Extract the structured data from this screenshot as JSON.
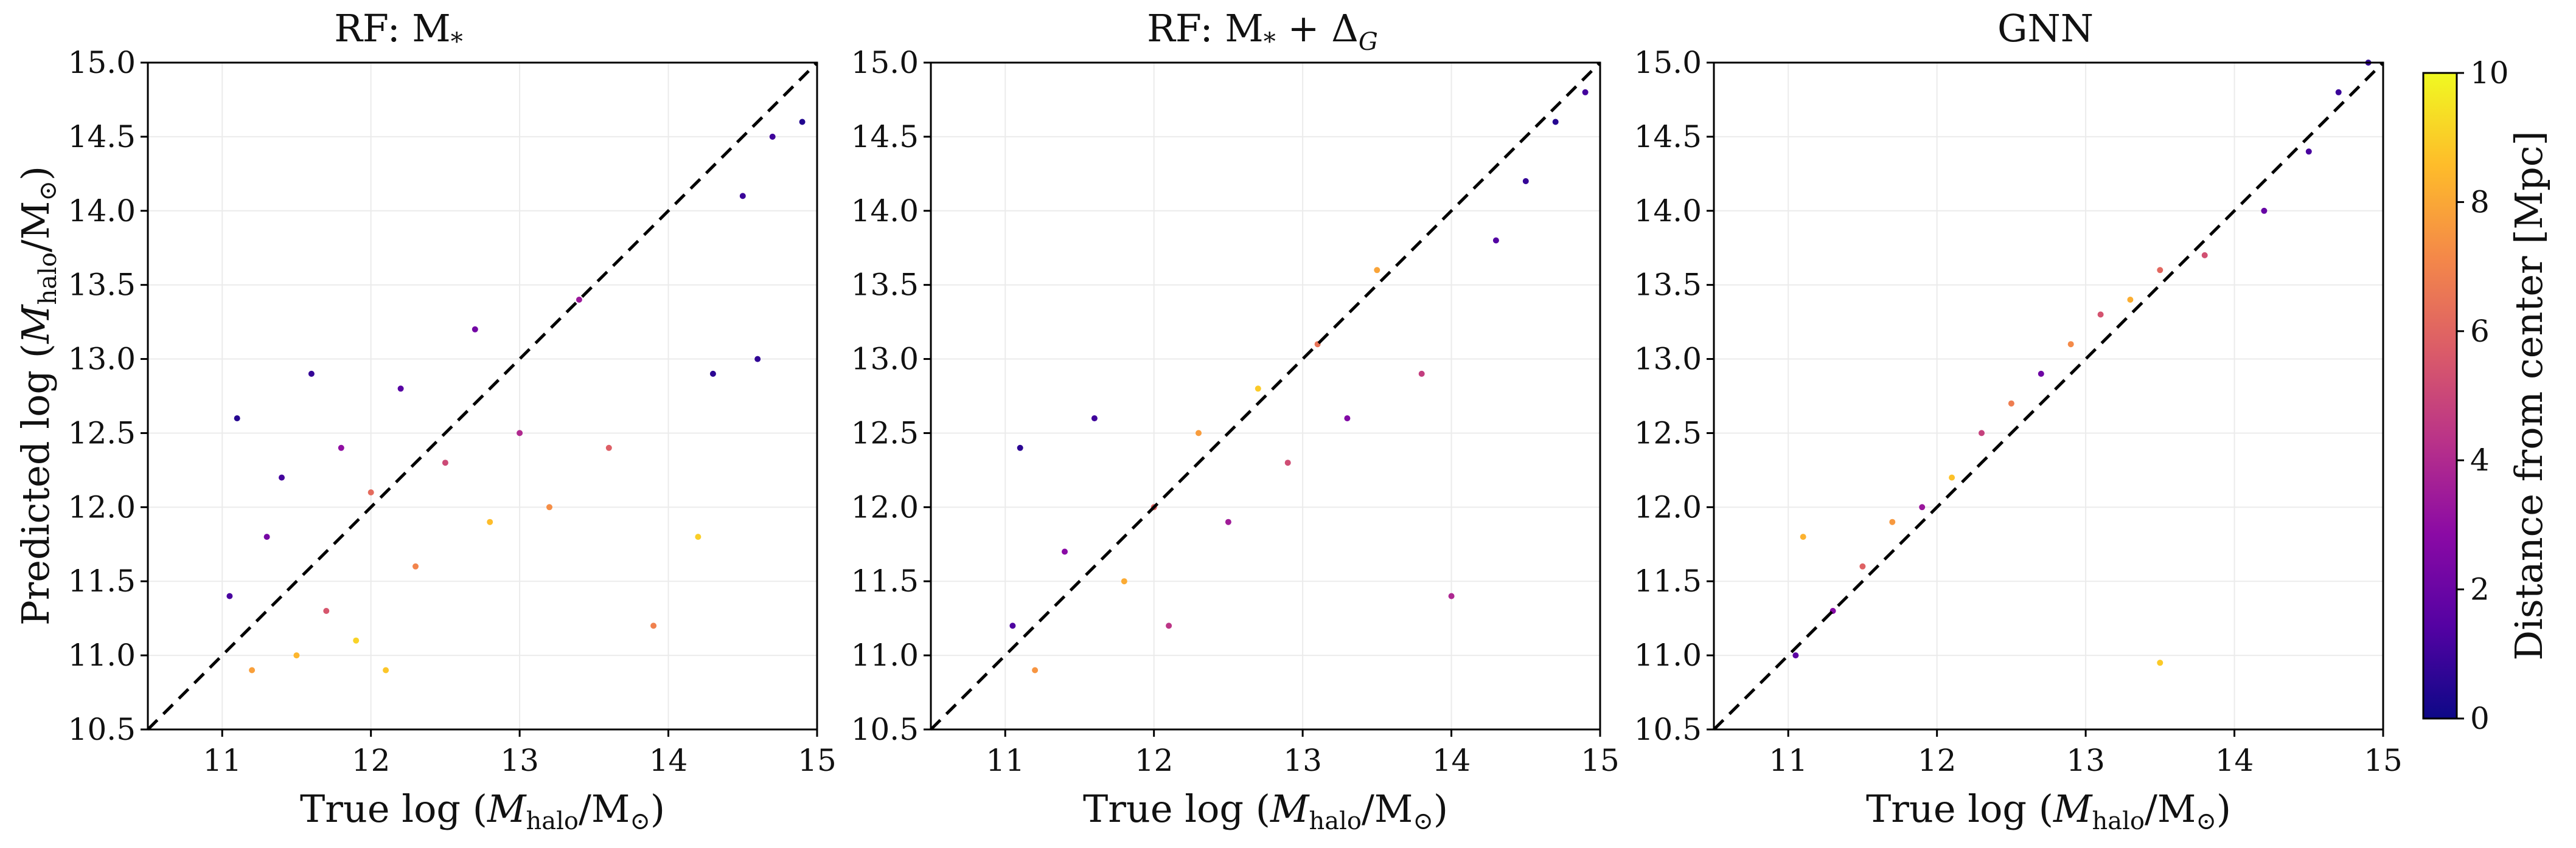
{
  "chart_data": [
    {
      "type": "scatter",
      "title": "RF: M",
      "title_subscript": "*",
      "title_suffix": "",
      "title_suffix_sub": "",
      "xlabel_prefix": "True log (",
      "xlabel_sub": "halo",
      "xlabel_suffix": "/M",
      "xlabel_sun": "⊙",
      "xlabel_close": ")",
      "ylabel_prefix": "Predicted log (",
      "ylabel_sub": "halo",
      "ylabel_suffix": "/M",
      "ylabel_sun": "⊙",
      "ylabel_close": ")",
      "xlim": [
        10.5,
        15.0
      ],
      "ylim": [
        10.5,
        15.0
      ],
      "xticks": [
        "11",
        "12",
        "13",
        "14",
        "15"
      ],
      "yticks": [
        "10.5",
        "11.0",
        "11.5",
        "12.0",
        "12.5",
        "13.0",
        "13.5",
        "14.0",
        "14.5",
        "15.0"
      ],
      "reference_line": "y = x",
      "color_by": "distance_from_center_Mpc",
      "points": [
        [
          11.05,
          11.4,
          1.2
        ],
        [
          11.1,
          12.6,
          0.5
        ],
        [
          11.2,
          10.9,
          7.8
        ],
        [
          11.3,
          11.8,
          2.3
        ],
        [
          11.4,
          12.2,
          1.1
        ],
        [
          11.5,
          11.0,
          8.4
        ],
        [
          11.6,
          12.9,
          0.8
        ],
        [
          11.7,
          11.3,
          5.5
        ],
        [
          11.8,
          12.4,
          3.0
        ],
        [
          11.9,
          11.1,
          9.1
        ],
        [
          12.0,
          12.1,
          6.2
        ],
        [
          12.1,
          10.9,
          8.8
        ],
        [
          12.2,
          12.8,
          1.5
        ],
        [
          12.3,
          11.6,
          7.0
        ],
        [
          12.5,
          12.3,
          5.1
        ],
        [
          12.7,
          13.2,
          2.2
        ],
        [
          12.8,
          11.9,
          8.6
        ],
        [
          13.0,
          12.5,
          4.0
        ],
        [
          13.2,
          12.0,
          7.3
        ],
        [
          13.4,
          13.4,
          3.4
        ],
        [
          13.6,
          12.4,
          5.8
        ],
        [
          13.9,
          11.2,
          6.9
        ],
        [
          14.2,
          11.8,
          9.0
        ],
        [
          14.3,
          12.9,
          0.6
        ],
        [
          14.5,
          14.1,
          0.9
        ],
        [
          14.6,
          13.0,
          0.7
        ],
        [
          14.7,
          14.5,
          1.0
        ],
        [
          14.9,
          14.6,
          0.4
        ]
      ]
    },
    {
      "type": "scatter",
      "title": "RF: M",
      "title_subscript": "*",
      "title_suffix": " + Δ",
      "title_suffix_sub": "G",
      "xlabel_prefix": "True log (",
      "xlabel_sub": "halo",
      "xlabel_suffix": "/M",
      "xlabel_sun": "⊙",
      "xlabel_close": ")",
      "xlim": [
        10.5,
        15.0
      ],
      "ylim": [
        10.5,
        15.0
      ],
      "xticks": [
        "11",
        "12",
        "13",
        "14",
        "15"
      ],
      "yticks": [
        "10.5",
        "11.0",
        "11.5",
        "12.0",
        "12.5",
        "13.0",
        "13.5",
        "14.0",
        "14.5",
        "15.0"
      ],
      "reference_line": "y = x",
      "color_by": "distance_from_center_Mpc",
      "points": [
        [
          11.05,
          11.2,
          1.3
        ],
        [
          11.1,
          12.4,
          0.6
        ],
        [
          11.2,
          10.9,
          7.5
        ],
        [
          11.4,
          11.7,
          2.8
        ],
        [
          11.6,
          12.6,
          1.0
        ],
        [
          11.8,
          11.5,
          8.1
        ],
        [
          12.0,
          12.0,
          6.0
        ],
        [
          12.1,
          11.2,
          4.4
        ],
        [
          12.3,
          12.5,
          7.7
        ],
        [
          12.5,
          11.9,
          3.5
        ],
        [
          12.7,
          12.8,
          8.9
        ],
        [
          12.9,
          12.3,
          5.2
        ],
        [
          13.1,
          13.1,
          6.5
        ],
        [
          13.3,
          12.6,
          2.6
        ],
        [
          13.5,
          13.6,
          7.9
        ],
        [
          13.8,
          12.9,
          4.7
        ],
        [
          14.0,
          11.4,
          3.9
        ],
        [
          14.3,
          13.8,
          1.4
        ],
        [
          14.5,
          14.2,
          0.8
        ],
        [
          14.7,
          14.6,
          0.5
        ],
        [
          14.9,
          14.8,
          1.1
        ]
      ]
    },
    {
      "type": "scatter",
      "title": "GNN",
      "title_subscript": "",
      "title_suffix": "",
      "title_suffix_sub": "",
      "xlabel_prefix": "True log (",
      "xlabel_sub": "halo",
      "xlabel_suffix": "/M",
      "xlabel_sun": "⊙",
      "xlabel_close": ")",
      "xlim": [
        10.5,
        15.0
      ],
      "ylim": [
        10.5,
        15.0
      ],
      "xticks": [
        "11",
        "12",
        "13",
        "14",
        "15"
      ],
      "yticks": [
        "10.5",
        "11.0",
        "11.5",
        "12.0",
        "12.5",
        "13.0",
        "13.5",
        "14.0",
        "14.5",
        "15.0"
      ],
      "reference_line": "y = x",
      "color_by": "distance_from_center_Mpc",
      "points": [
        [
          11.05,
          11.0,
          1.6
        ],
        [
          11.1,
          11.8,
          8.3
        ],
        [
          11.3,
          11.3,
          2.7
        ],
        [
          11.5,
          11.6,
          5.9
        ],
        [
          11.7,
          11.9,
          7.6
        ],
        [
          11.9,
          12.0,
          3.3
        ],
        [
          12.1,
          12.2,
          8.7
        ],
        [
          12.3,
          12.5,
          4.8
        ],
        [
          12.5,
          12.7,
          6.8
        ],
        [
          12.7,
          12.9,
          2.1
        ],
        [
          12.9,
          13.1,
          7.2
        ],
        [
          13.1,
          13.3,
          5.4
        ],
        [
          13.3,
          13.4,
          8.2
        ],
        [
          13.5,
          13.6,
          6.1
        ],
        [
          13.5,
          10.95,
          8.9
        ],
        [
          13.8,
          13.7,
          5.3
        ],
        [
          14.2,
          14.0,
          1.9
        ],
        [
          14.5,
          14.4,
          1.2
        ],
        [
          14.7,
          14.8,
          0.9
        ],
        [
          14.9,
          15.0,
          0.7
        ]
      ]
    }
  ],
  "colorbar": {
    "label": "Distance from center [Mpc]",
    "ticks": [
      "0",
      "2",
      "4",
      "6",
      "8",
      "10"
    ],
    "range": [
      0,
      10
    ],
    "colormap": "plasma",
    "stops": [
      "#0d0887",
      "#5402a3",
      "#8b0aa5",
      "#b93289",
      "#db5c68",
      "#f48849",
      "#febc2a",
      "#f0f921"
    ]
  },
  "colors": {
    "reference_line": "#000000",
    "grid": "#ebebeb",
    "axes": "#000000"
  }
}
